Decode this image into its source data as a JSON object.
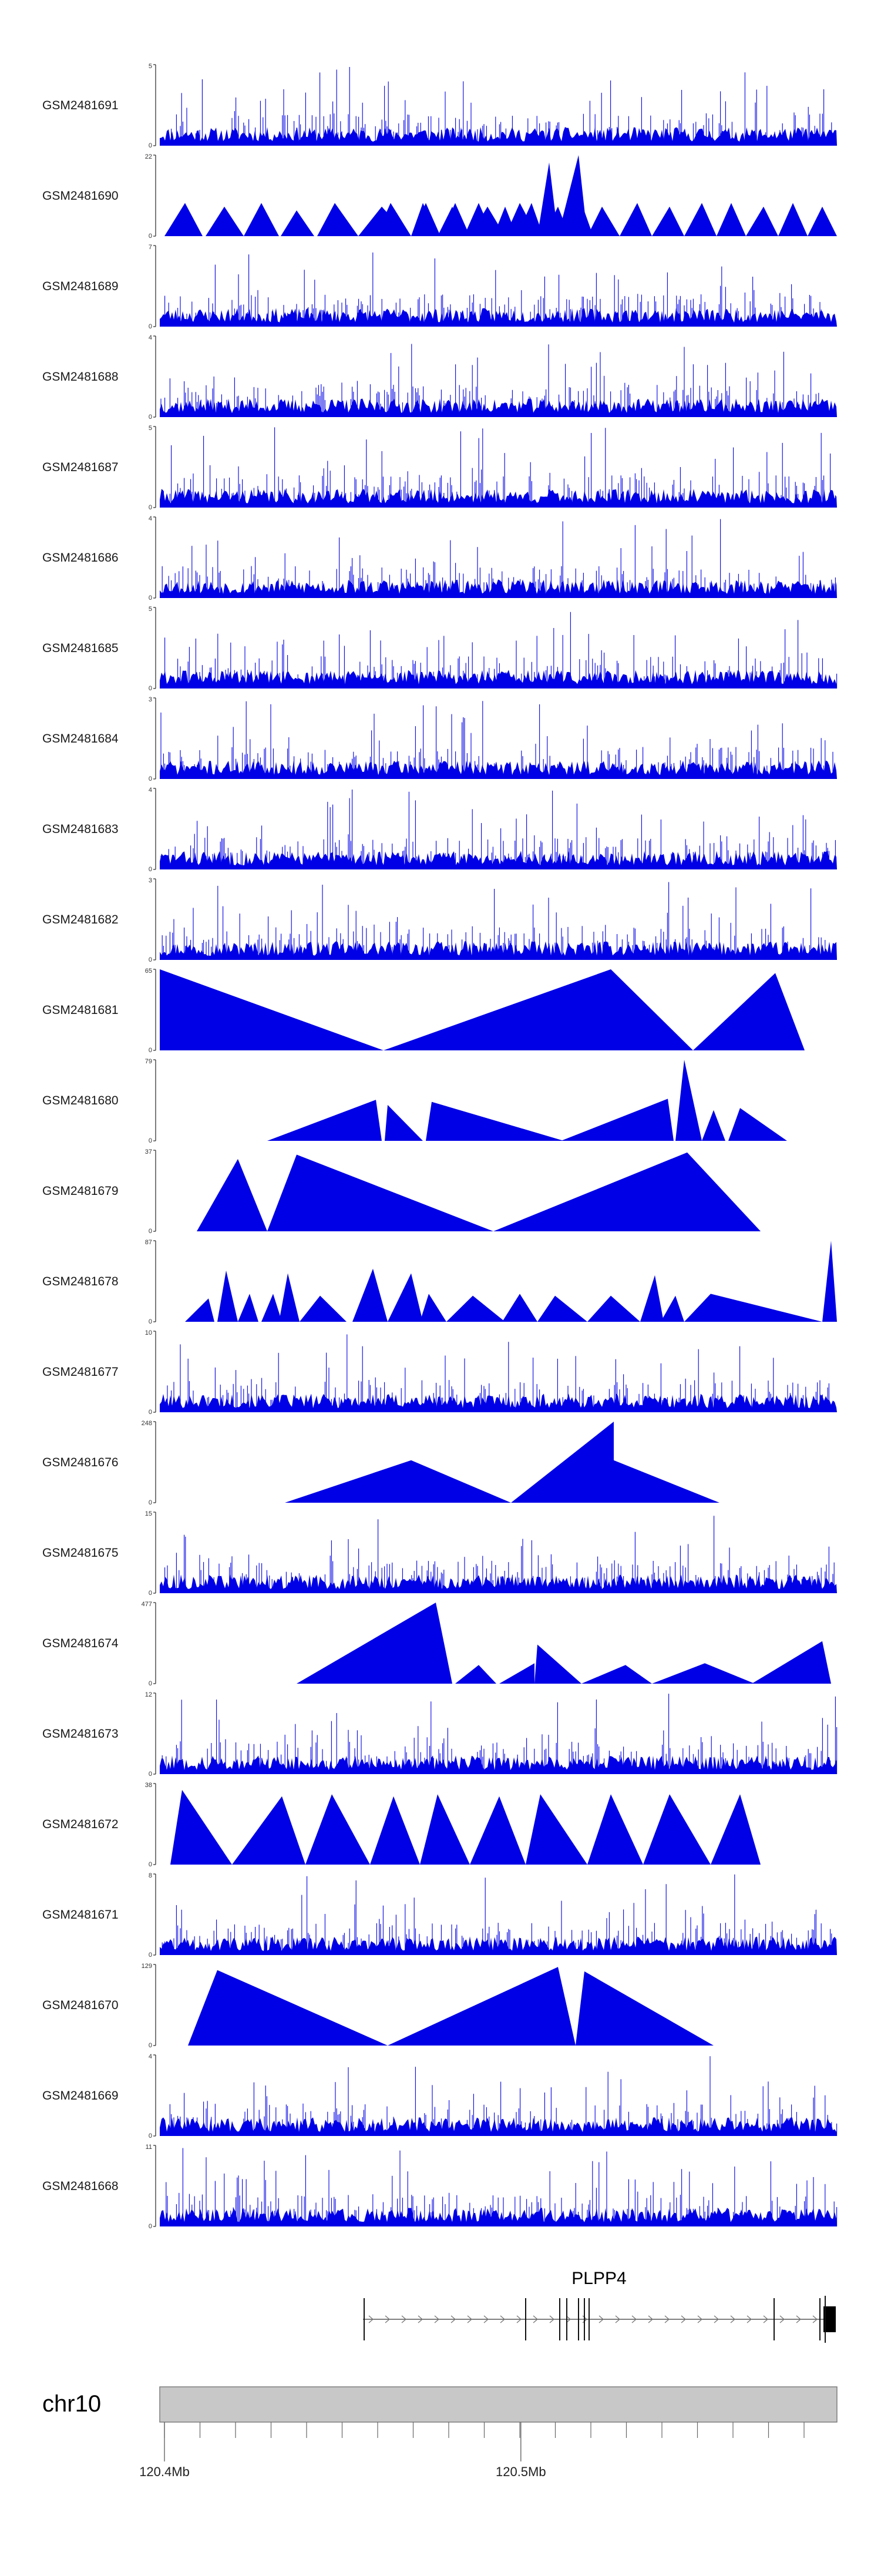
{
  "chart_data": {
    "type": "area",
    "title": "",
    "color": "#0000e6",
    "tracks": [
      {
        "name": "GSM2481691",
        "ymax": "5",
        "ymin": "0",
        "kind": "noise",
        "max": 5,
        "seed": 11
      },
      {
        "name": "GSM2481690",
        "ymax": "22",
        "ymin": "0",
        "kind": "peaks",
        "max": 22,
        "values": [
          9,
          8,
          9,
          7,
          9,
          8,
          9,
          9,
          8,
          9,
          20,
          22,
          8,
          9,
          8,
          9,
          9,
          8,
          9,
          8,
          9,
          9,
          8,
          9,
          8,
          9,
          8,
          9
        ]
      },
      {
        "name": "GSM2481689",
        "ymax": "7",
        "ymin": "0",
        "kind": "noise",
        "max": 7,
        "seed": 23
      },
      {
        "name": "GSM2481688",
        "ymax": "4",
        "ymin": "0",
        "kind": "noise",
        "max": 4,
        "seed": 37
      },
      {
        "name": "GSM2481687",
        "ymax": "5",
        "ymin": "0",
        "kind": "noise",
        "max": 5,
        "seed": 41
      },
      {
        "name": "GSM2481686",
        "ymax": "4",
        "ymin": "0",
        "kind": "noise",
        "max": 4,
        "seed": 53
      },
      {
        "name": "GSM2481685",
        "ymax": "5",
        "ymin": "0",
        "kind": "noise",
        "max": 5,
        "seed": 61
      },
      {
        "name": "GSM2481684",
        "ymax": "3",
        "ymin": "0",
        "kind": "noise",
        "max": 3,
        "seed": 71
      },
      {
        "name": "GSM2481683",
        "ymax": "4",
        "ymin": "0",
        "kind": "noise",
        "max": 4,
        "seed": 83
      },
      {
        "name": "GSM2481682",
        "ymax": "3",
        "ymin": "0",
        "kind": "noise",
        "max": 3,
        "seed": 97
      },
      {
        "name": "GSM2481681",
        "ymax": "65",
        "ymin": "0",
        "kind": "peaks",
        "max": 65,
        "values": [
          65,
          65,
          62
        ]
      },
      {
        "name": "GSM2481680",
        "ymax": "79",
        "ymin": "0",
        "kind": "peaks",
        "max": 79,
        "values": [
          40,
          35,
          38,
          41,
          79,
          30,
          32
        ]
      },
      {
        "name": "GSM2481679",
        "ymax": "37",
        "ymin": "0",
        "kind": "peaks",
        "max": 37,
        "values": [
          33,
          35,
          36
        ]
      },
      {
        "name": "GSM2481678",
        "ymax": "87",
        "ymin": "0",
        "kind": "peaks",
        "max": 87,
        "values": [
          25,
          55,
          30,
          30,
          52,
          28,
          57,
          52,
          30,
          28,
          30,
          28,
          28,
          50,
          28,
          30,
          87
        ]
      },
      {
        "name": "GSM2481677",
        "ymax": "10",
        "ymin": "0",
        "kind": "noise",
        "max": 10,
        "seed": 101
      },
      {
        "name": "GSM2481676",
        "ymax": "248",
        "ymin": "0",
        "kind": "peaks",
        "max": 248,
        "values": [
          130,
          248,
          130
        ]
      },
      {
        "name": "GSM2481675",
        "ymax": "15",
        "ymin": "0",
        "kind": "noise",
        "max": 15,
        "seed": 113
      },
      {
        "name": "GSM2481674",
        "ymax": "477",
        "ymin": "0",
        "kind": "peaks",
        "max": 477,
        "values": [
          477,
          110,
          120,
          230,
          110,
          120,
          250
        ]
      },
      {
        "name": "GSM2481673",
        "ymax": "12",
        "ymin": "0",
        "kind": "noise",
        "max": 12,
        "seed": 127
      },
      {
        "name": "GSM2481672",
        "ymax": "38",
        "ymin": "0",
        "kind": "peaks",
        "max": 38,
        "values": [
          35,
          32,
          33,
          32,
          33,
          32,
          33,
          33,
          33,
          33
        ]
      },
      {
        "name": "GSM2481671",
        "ymax": "8",
        "ymin": "0",
        "kind": "noise",
        "max": 8,
        "seed": 131
      },
      {
        "name": "GSM2481670",
        "ymax": "129",
        "ymin": "0",
        "kind": "peaks",
        "max": 129,
        "values": [
          120,
          125,
          118
        ]
      },
      {
        "name": "GSM2481669",
        "ymax": "4",
        "ymin": "0",
        "kind": "noise",
        "max": 4,
        "seed": 139
      },
      {
        "name": "GSM2481668",
        "ymax": "11",
        "ymin": "0",
        "kind": "noise",
        "max": 11,
        "seed": 149
      }
    ],
    "gene": {
      "name": "PLPP4"
    },
    "chromosome": {
      "name": "chr10",
      "xrange": [
        120.4,
        120.59
      ],
      "ticks": [
        {
          "label": "120.4Mb"
        },
        {
          "label": "120.5Mb"
        }
      ]
    }
  }
}
